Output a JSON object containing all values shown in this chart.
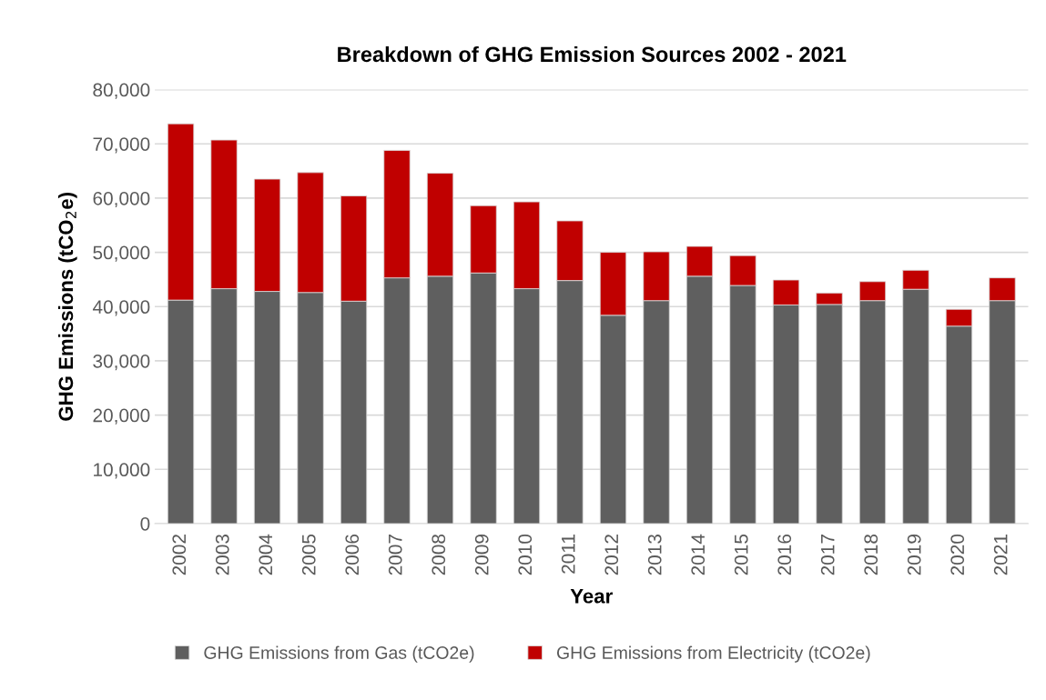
{
  "chart_data": {
    "type": "bar",
    "stacked": true,
    "title": "Breakdown of GHG Emission Sources 2002 - 2021",
    "xlabel": "Year",
    "ylabel": "GHG Emissions (tCO$_{2}$e)",
    "categories": [
      "2002",
      "2003",
      "2004",
      "2005",
      "2006",
      "2007",
      "2008",
      "2009",
      "2010",
      "2011",
      "2012",
      "2013",
      "2014",
      "2015",
      "2016",
      "2017",
      "2018",
      "2019",
      "2020",
      "2021"
    ],
    "series": [
      {
        "name": "GHG Emissions from Gas (tCO2e)",
        "color": "#5f5f5f",
        "values": [
          41200,
          43300,
          42800,
          42600,
          41000,
          45300,
          45600,
          46200,
          43300,
          44800,
          38400,
          41100,
          45600,
          43900,
          40300,
          40400,
          41100,
          43200,
          36400,
          41100
        ]
      },
      {
        "name": "GHG Emissions from Electricity (tCO2e)",
        "color": "#c00000",
        "values": [
          32500,
          27400,
          20700,
          22100,
          19400,
          23500,
          19000,
          12400,
          16000,
          11000,
          11600,
          9000,
          5500,
          5500,
          4600,
          2100,
          3500,
          3500,
          3100,
          4200
        ]
      }
    ],
    "ylim": [
      0,
      80000
    ],
    "yticks": [
      0,
      {
        "value": 10000,
        "label": "10,000"
      },
      {
        "value": 20000,
        "label": "20,000"
      },
      {
        "value": 30000,
        "label": "30,000"
      },
      {
        "value": 40000,
        "label": "40,000"
      },
      {
        "value": 50000,
        "label": "50,000"
      },
      {
        "value": 60000,
        "label": "60,000"
      },
      {
        "value": 70000,
        "label": "70,000"
      },
      {
        "value": 80000,
        "label": "80,000"
      }
    ],
    "grid": "y",
    "legend": "bottom"
  }
}
